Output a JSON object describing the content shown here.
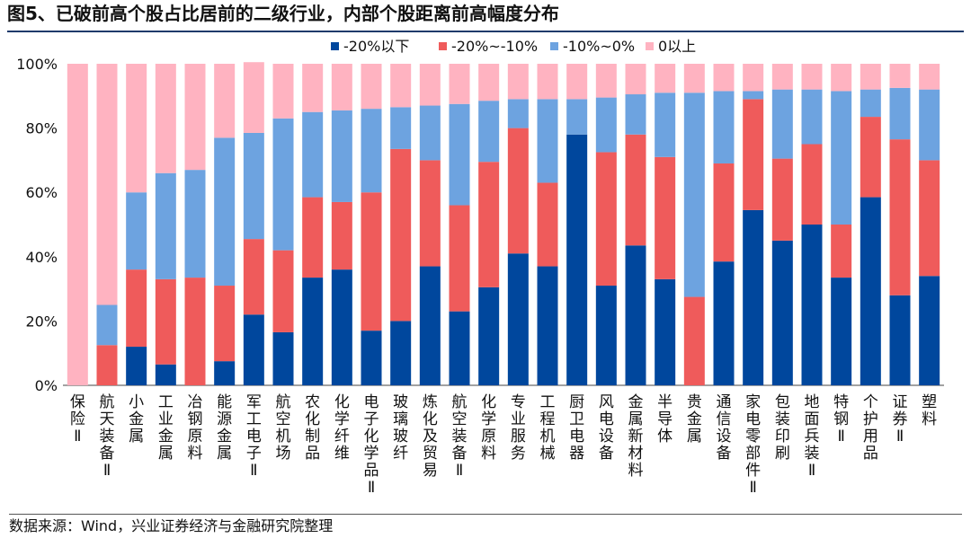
{
  "title": "图5、已破前高个股占比居前的二级行业，内部个股距离前高幅度分布",
  "source": "数据来源：Wind，兴业证券经济与金融研究院整理",
  "chart_data": {
    "type": "bar",
    "stacked": true,
    "ylim": [
      0,
      100
    ],
    "yticks": [
      "0%",
      "20%",
      "40%",
      "60%",
      "80%",
      "100%"
    ],
    "legend_position": "top",
    "categories": [
      "保险Ⅱ",
      "航天装备Ⅱ",
      "小金属",
      "工业金属",
      "冶钢原料",
      "能源金属",
      "军工电子Ⅱ",
      "航空机场",
      "农化制品",
      "化学纤维",
      "电子化学品Ⅱ",
      "玻璃玻纤",
      "炼化及贸易",
      "航空装备Ⅱ",
      "化学原料",
      "专业服务",
      "工程机械",
      "厨卫电器",
      "风电设备",
      "金属新材料",
      "半导体",
      "贵金属",
      "通信设备",
      "家电零部件Ⅱ",
      "包装印刷",
      "地面兵装Ⅱ",
      "特钢Ⅱ",
      "个护用品",
      "证券Ⅱ",
      "塑料"
    ],
    "series": [
      {
        "name": "-20%以下",
        "color": "#00479d",
        "values": [
          0,
          0,
          12,
          6.5,
          0,
          7.5,
          22,
          16.5,
          33.5,
          36,
          17,
          20,
          37,
          23,
          30.5,
          41,
          37,
          78,
          31,
          43.5,
          33,
          0,
          38.5,
          54.5,
          45,
          50,
          33.5,
          58.5,
          28,
          34
        ]
      },
      {
        "name": "-20%~-10%",
        "color": "#ef5b5b",
        "values": [
          0,
          12.5,
          24,
          26.5,
          33.5,
          23.5,
          23.5,
          25.5,
          25,
          21,
          43,
          53.5,
          33,
          33,
          39,
          39,
          26,
          0,
          41.5,
          34.5,
          38,
          27.5,
          30.5,
          34.5,
          25.5,
          25,
          16.5,
          25,
          48.5,
          36
        ]
      },
      {
        "name": "-10%~0%",
        "color": "#6da3e0",
        "values": [
          0,
          12.5,
          24,
          33,
          33.5,
          46,
          33,
          41,
          26.5,
          28.5,
          26,
          13,
          17,
          31.5,
          19,
          9,
          26,
          11,
          17,
          12.5,
          20,
          63.5,
          22.5,
          2.5,
          21.5,
          17,
          41.5,
          8.5,
          16,
          22
        ]
      },
      {
        "name": "0以上",
        "color": "#ffb3c1",
        "values": [
          100,
          75,
          40,
          34,
          33,
          23,
          22,
          17,
          15,
          14.5,
          14,
          13.5,
          13,
          12.5,
          11.5,
          11,
          11,
          11,
          10.5,
          9.5,
          9,
          9,
          8.5,
          8.5,
          8,
          8,
          8.5,
          8,
          7.5,
          8
        ]
      }
    ]
  }
}
